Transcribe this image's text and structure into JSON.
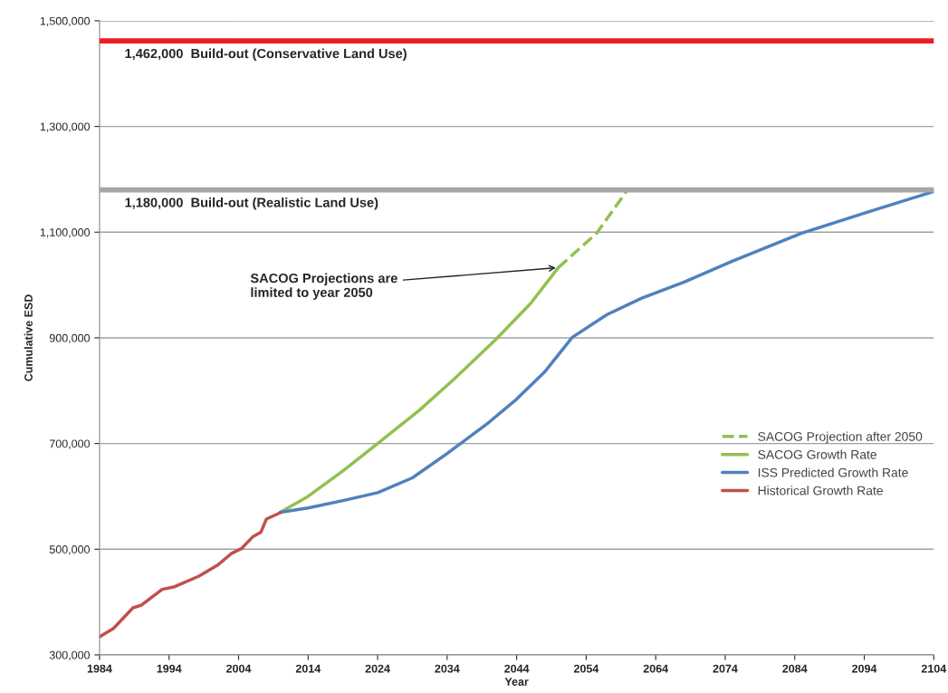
{
  "chart_data": {
    "type": "line",
    "xlabel": "Year",
    "ylabel": "Cumulative ESD",
    "xlim": [
      1984,
      2104
    ],
    "xticks": [
      1984,
      1994,
      2004,
      2014,
      2024,
      2034,
      2044,
      2054,
      2064,
      2074,
      2084,
      2094,
      2104
    ],
    "ylim": [
      300000,
      1500000
    ],
    "yticks": [
      {
        "value": 300000,
        "label": "300,000"
      },
      {
        "value": 500000,
        "label": "500,000"
      },
      {
        "value": 700000,
        "label": "700,000"
      },
      {
        "value": 900000,
        "label": "900,000"
      },
      {
        "value": 1100000,
        "label": "1,100,000"
      },
      {
        "value": 1300000,
        "label": "1,300,000"
      },
      {
        "value": 1500000,
        "label": "1,500,000"
      }
    ],
    "grid": "y",
    "legend": "right",
    "series": [
      {
        "name": "SACOG Projection after 2050",
        "color": "#92c050",
        "line_style": "dashed",
        "x": [
          2050,
          2055.5,
          2060
        ],
        "values": [
          1033000,
          1098000,
          1181000
        ]
      },
      {
        "name": "SACOG Growth Rate",
        "color": "#92c050",
        "x": [
          2010,
          2014,
          2019,
          2024,
          2030,
          2035,
          2041,
          2046,
          2050
        ],
        "values": [
          570000,
          600000,
          648000,
          700000,
          763000,
          822000,
          897000,
          965000,
          1033000
        ]
      },
      {
        "name": "ISS Predicted Growth Rate",
        "color": "#4f81bd",
        "x": [
          2010,
          2014,
          2019,
          2024,
          2029,
          2034,
          2040,
          2044,
          2048,
          2052,
          2057,
          2062,
          2068,
          2075,
          2085,
          2095,
          2104
        ],
        "values": [
          570000,
          578000,
          592000,
          607000,
          635000,
          681000,
          740000,
          784000,
          835000,
          901000,
          944000,
          975000,
          1005000,
          1045000,
          1098000,
          1140000,
          1177000
        ]
      },
      {
        "name": "Historical Growth Rate",
        "color": "#c0504d",
        "x": [
          1984,
          1986,
          1988.8,
          1990,
          1993,
          1994.8,
          1998.3,
          2001,
          2003,
          2004.4,
          2006,
          2007.2,
          2008,
          2010
        ],
        "values": [
          334000,
          350000,
          389000,
          394000,
          424000,
          429000,
          449000,
          470000,
          492000,
          501000,
          523000,
          532000,
          557000,
          569000
        ]
      }
    ],
    "ref_lines": [
      {
        "axis": "y",
        "value": 1462000,
        "label": "1,462,000  Build-out (Conservative Land Use)",
        "color": "#ee1c25"
      },
      {
        "axis": "y",
        "value": 1180000,
        "label": "1,180,000  Build-out (Realistic Land Use)",
        "color": "#a6a6a6"
      }
    ],
    "annotations": [
      {
        "text": "SACOG Projections are\nlimited to year 2050",
        "x": 2050,
        "y": 1033000
      }
    ]
  }
}
